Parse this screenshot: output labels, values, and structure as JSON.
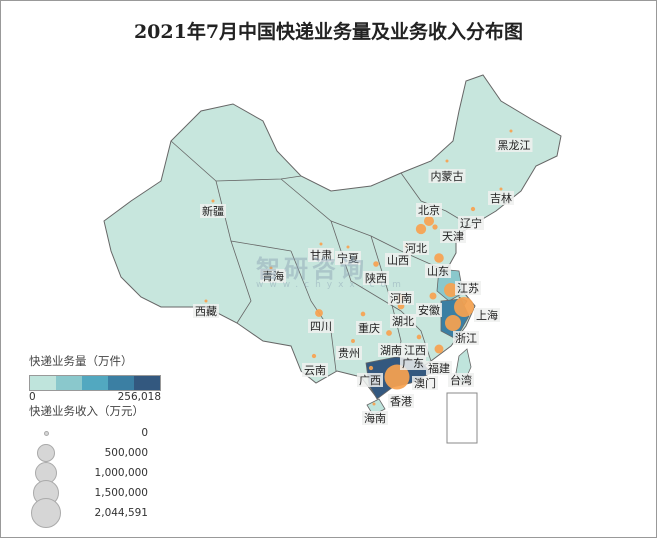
{
  "title": "2021年7月中国快递业务量及业务收入分布图",
  "watermark": {
    "name": "智研咨询",
    "url": "www.chyxx.com"
  },
  "colors": {
    "ramp": [
      "#bfe4dc",
      "#8ac8cc",
      "#52a8c0",
      "#3b7fa3",
      "#33587f"
    ],
    "bubble": "#f7a24f",
    "base": "#c7e6dd",
    "border": "#666666"
  },
  "legend": {
    "volume_title": "快递业务量（万件）",
    "volume_min": "0",
    "volume_max": "256,018",
    "revenue_title": "快递业务收入（万元）",
    "sizes": [
      {
        "label": "0",
        "value": 0
      },
      {
        "label": "500,000",
        "value": 500000
      },
      {
        "label": "1,000,000",
        "value": 1000000
      },
      {
        "label": "1,500,000",
        "value": 1500000
      },
      {
        "label": "2,044,591",
        "value": 2044591
      }
    ]
  },
  "provinces": [
    {
      "name": "黑龙江",
      "revenue": 30000,
      "volume_level": 0
    },
    {
      "name": "吉林",
      "revenue": 20000,
      "volume_level": 0
    },
    {
      "name": "辽宁",
      "revenue": 60000,
      "volume_level": 0
    },
    {
      "name": "内蒙古",
      "revenue": 15000,
      "volume_level": 0
    },
    {
      "name": "北京",
      "revenue": 330000,
      "volume_level": 0
    },
    {
      "name": "天津",
      "revenue": 90000,
      "volume_level": 0
    },
    {
      "name": "河北",
      "revenue": 350000,
      "volume_level": 0
    },
    {
      "name": "山西",
      "revenue": 40000,
      "volume_level": 0
    },
    {
      "name": "山东",
      "revenue": 300000,
      "volume_level": 0
    },
    {
      "name": "河南",
      "revenue": 180000,
      "volume_level": 0
    },
    {
      "name": "江苏",
      "revenue": 640000,
      "volume_level": 1
    },
    {
      "name": "上海",
      "revenue": 1300000,
      "volume_level": 2
    },
    {
      "name": "浙江",
      "revenue": 840000,
      "volume_level": 3
    },
    {
      "name": "安徽",
      "revenue": 160000,
      "volume_level": 0
    },
    {
      "name": "湖北",
      "revenue": 150000,
      "volume_level": 0
    },
    {
      "name": "湖南",
      "revenue": 110000,
      "volume_level": 0
    },
    {
      "name": "江西",
      "revenue": 70000,
      "volume_level": 0
    },
    {
      "name": "福建",
      "revenue": 260000,
      "volume_level": 0
    },
    {
      "name": "广东",
      "revenue": 2044591,
      "volume_level": 4
    },
    {
      "name": "广西",
      "revenue": 60000,
      "volume_level": 0
    },
    {
      "name": "海南",
      "revenue": 15000,
      "volume_level": 0
    },
    {
      "name": "重庆",
      "revenue": 70000,
      "volume_level": 0
    },
    {
      "name": "四川",
      "revenue": 200000,
      "volume_level": 0
    },
    {
      "name": "贵州",
      "revenue": 50000,
      "volume_level": 0
    },
    {
      "name": "云南",
      "revenue": 60000,
      "volume_level": 0
    },
    {
      "name": "陕西",
      "revenue": 100000,
      "volume_level": 0
    },
    {
      "name": "甘肃",
      "revenue": 20000,
      "volume_level": 0
    },
    {
      "name": "宁夏",
      "revenue": 10000,
      "volume_level": 0
    },
    {
      "name": "青海",
      "revenue": 6000,
      "volume_level": 0
    },
    {
      "name": "西藏",
      "revenue": 3000,
      "volume_level": 0
    },
    {
      "name": "新疆",
      "revenue": 15000,
      "volume_level": 0
    },
    {
      "name": "香港",
      "revenue": null,
      "volume_level": 0
    },
    {
      "name": "澳门",
      "revenue": null,
      "volume_level": 0
    },
    {
      "name": "台湾",
      "revenue": null,
      "volume_level": 0
    }
  ]
}
